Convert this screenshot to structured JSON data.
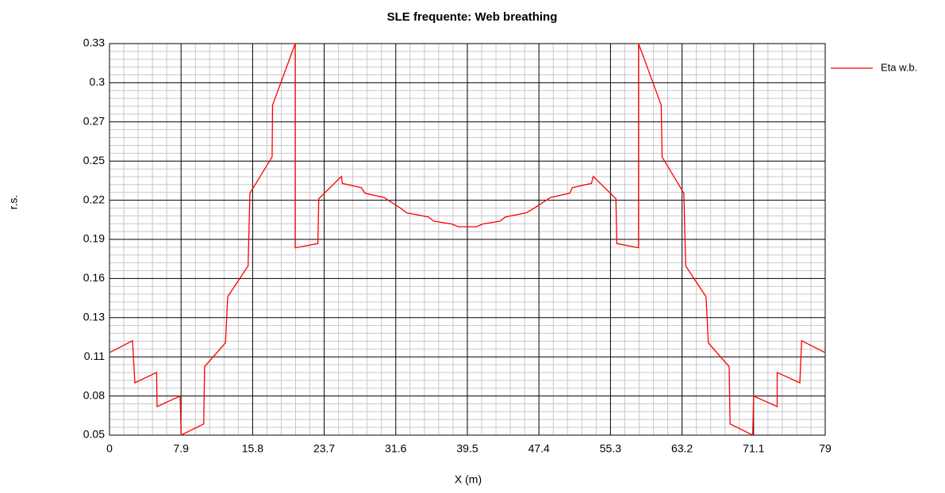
{
  "chart_data": {
    "type": "line",
    "title": "SLE frequente: Web breathing",
    "xlabel": "X (m)",
    "ylabel": "r.s.",
    "xlim": [
      0,
      79
    ],
    "xticks": [
      0,
      7.9,
      15.8,
      23.7,
      31.6,
      39.5,
      47.4,
      55.3,
      63.2,
      71.1,
      79
    ],
    "ylim": [
      0.05,
      0.33
    ],
    "yticks": [
      0.05,
      {
        "value": 0.078,
        "label": "0.08"
      },
      {
        "value": 0.106,
        "label": "0.11"
      },
      {
        "value": 0.134,
        "label": "0.13"
      },
      {
        "value": 0.162,
        "label": "0.16"
      },
      0.19,
      {
        "value": 0.218,
        "label": "0.22"
      },
      {
        "value": 0.246,
        "label": "0.25"
      },
      {
        "value": 0.274,
        "label": "0.27"
      },
      {
        "value": 0.302,
        "label": "0.3"
      },
      0.33
    ],
    "grid": true,
    "legend": "upper right",
    "series": [
      {
        "name": "Eta w.b.",
        "color": "#ff0000",
        "x": [
          0,
          2.54,
          2.8,
          5.2,
          5.25,
          7.8,
          7.9,
          10.4,
          10.5,
          12.8,
          13.05,
          15.3,
          15.5,
          17.95,
          18.0,
          20.5,
          20.5,
          23.0,
          23.1,
          25.6,
          25.7,
          27.8,
          28.2,
          30.3,
          32.2,
          32.8,
          35.2,
          35.8,
          37.8,
          38.5,
          40.5,
          41.2,
          43.1,
          43.7,
          46.0,
          46.8,
          48.7,
          50.8,
          51.1,
          53.2,
          53.4,
          55.9,
          56.0,
          58.4,
          58.4,
          60.9,
          61.0,
          63.4,
          63.6,
          65.85,
          66.1,
          68.4,
          68.5,
          71.0,
          71.1,
          73.7,
          73.7,
          76.2,
          76.4,
          79
        ],
        "values": [
          0.109,
          0.1175,
          0.0874,
          0.0948,
          0.0704,
          0.078,
          0.05,
          0.058,
          0.099,
          0.116,
          0.149,
          0.171,
          0.223,
          0.249,
          0.286,
          0.33,
          0.184,
          0.187,
          0.219,
          0.235,
          0.23,
          0.227,
          0.223,
          0.22,
          0.212,
          0.209,
          0.206,
          0.203,
          0.201,
          0.199,
          0.199,
          0.201,
          0.203,
          0.206,
          0.209,
          0.212,
          0.22,
          0.223,
          0.227,
          0.23,
          0.235,
          0.219,
          0.187,
          0.184,
          0.33,
          0.286,
          0.249,
          0.223,
          0.171,
          0.149,
          0.116,
          0.099,
          0.058,
          0.05,
          0.078,
          0.0704,
          0.0948,
          0.0874,
          0.1175,
          0.109
        ]
      }
    ]
  }
}
